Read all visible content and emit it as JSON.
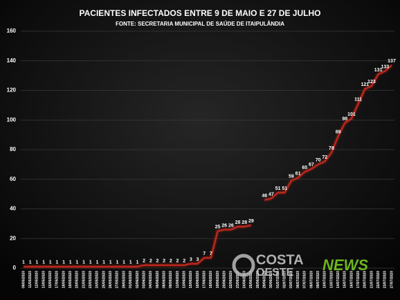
{
  "chart_data": {
    "type": "line",
    "title": "PACIENTES INFECTADOS ENTRE 9 DE MAIO E 27 DE JULHO",
    "subtitle": "FONTE: SECRETARIA MUNICIPAL DE SAÚDE DE ITAIPULÂNDIA",
    "watermark": [
      "COSTA",
      "OESTE",
      "NEWS"
    ],
    "categories": [
      "09/05/2020",
      "11/05/2020",
      "12/05/2020",
      "13/05/2020",
      "15/05/2020",
      "17/05/2020",
      "18/05/2020",
      "19/05/2020",
      "20/05/2020",
      "21/05/2020",
      "23/05/2020",
      "24/05/2020",
      "25/05/2020",
      "26/05/2020",
      "27/05/2020",
      "29/05/2020",
      "01/06/2020",
      "02/06/2020",
      "03/06/2020",
      "04/06/2020",
      "06/06/2020",
      "08/06/2020",
      "09/06/2020",
      "11/06/2020",
      "13/06/2020",
      "15/06/2020",
      "16/06/2020",
      "17/06/2020",
      "18/06/2020",
      "19/06/2020",
      "20/06/2020",
      "22/06/2020",
      "23/06/2020",
      "24/06/2020",
      "25/06/2020",
      "26/06/2020",
      "29/06/2020",
      "30/06/2020",
      "01/07/2020",
      "02/07/2020",
      "03/07/2020",
      "06/07/2020",
      "07/07/2020",
      "08/07/2020",
      "09/07/2020",
      "10/07/2020",
      "13/07/2020",
      "14/07/2020",
      "15/07/2020",
      "16/07/2020",
      "17/07/2020",
      "20/07/2020",
      "21/07/2020",
      "22/07/2020",
      "23/07/2020",
      "27/07/2020"
    ],
    "series": [
      {
        "name": "Infectados",
        "color": "#c0281c",
        "values": [
          1,
          1,
          1,
          1,
          1,
          1,
          1,
          1,
          1,
          1,
          1,
          1,
          1,
          1,
          1,
          1,
          1,
          1,
          2,
          2,
          2,
          2,
          2,
          2,
          2,
          3,
          3,
          7,
          7,
          25,
          26,
          26,
          28,
          28,
          29,
          null,
          46,
          47,
          51,
          51,
          59,
          61,
          65,
          67,
          70,
          72,
          78,
          89,
          98,
          101,
          111,
          121,
          123,
          131,
          133,
          137
        ]
      }
    ],
    "ylim": [
      0,
      160
    ],
    "yticks": [
      0,
      20,
      40,
      60,
      80,
      100,
      120,
      140,
      160
    ],
    "grid": true
  }
}
